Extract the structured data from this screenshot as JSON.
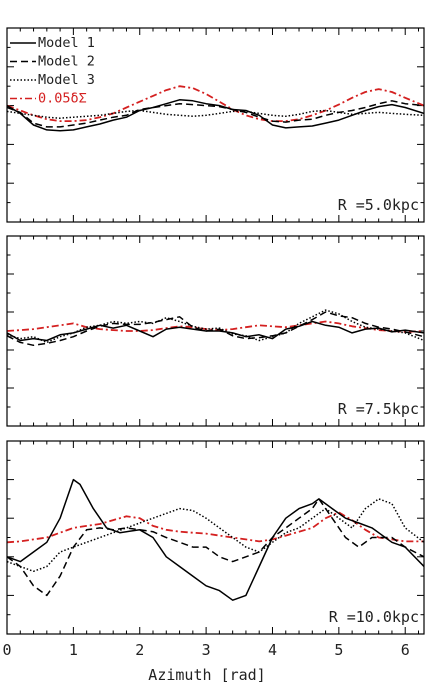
{
  "chart_data": [
    {
      "type": "line",
      "panel_label": "R =5.0kpc",
      "xlim": [
        0,
        6.283
      ],
      "ylim": [
        -1,
        1
      ],
      "legend": {
        "placement": "top-left",
        "entries": [
          "Model 1",
          "Model 2",
          "Model 3",
          "0.05δΣ"
        ]
      },
      "series": [
        {
          "name": "Model 1",
          "color": "#000000",
          "style": "solid",
          "x": [
            0,
            0.2,
            0.4,
            0.6,
            0.8,
            1.0,
            1.2,
            1.4,
            1.6,
            1.8,
            2.0,
            2.2,
            2.4,
            2.6,
            2.8,
            3.0,
            3.2,
            3.4,
            3.6,
            3.8,
            4.0,
            4.2,
            4.4,
            4.6,
            4.8,
            5.0,
            5.2,
            5.4,
            5.6,
            5.8,
            6.0,
            6.283
          ],
          "y": [
            0.2,
            0.12,
            0.0,
            -0.05,
            -0.06,
            -0.05,
            -0.02,
            0.01,
            0.05,
            0.08,
            0.15,
            0.18,
            0.22,
            0.26,
            0.25,
            0.22,
            0.2,
            0.16,
            0.15,
            0.1,
            0.0,
            -0.03,
            -0.02,
            -0.01,
            0.02,
            0.05,
            0.1,
            0.15,
            0.19,
            0.21,
            0.18,
            0.12
          ]
        },
        {
          "name": "Model 2",
          "color": "#000000",
          "style": "dashed",
          "x": [
            0,
            0.2,
            0.4,
            0.6,
            0.8,
            1.0,
            1.2,
            1.4,
            1.6,
            1.8,
            2.0,
            2.2,
            2.4,
            2.6,
            2.8,
            3.0,
            3.2,
            3.4,
            3.6,
            3.8,
            4.0,
            4.2,
            4.4,
            4.6,
            4.8,
            5.0,
            5.2,
            5.4,
            5.6,
            5.8,
            6.0,
            6.283
          ],
          "y": [
            0.18,
            0.13,
            0.02,
            -0.02,
            -0.02,
            0.0,
            0.02,
            0.05,
            0.08,
            0.1,
            0.16,
            0.18,
            0.2,
            0.22,
            0.21,
            0.2,
            0.19,
            0.16,
            0.13,
            0.08,
            0.04,
            0.03,
            0.05,
            0.06,
            0.1,
            0.13,
            0.15,
            0.18,
            0.22,
            0.25,
            0.22,
            0.2
          ]
        },
        {
          "name": "Model 3",
          "color": "#000000",
          "style": "dotted",
          "x": [
            0,
            0.2,
            0.4,
            0.6,
            0.8,
            1.0,
            1.2,
            1.4,
            1.6,
            1.8,
            2.0,
            2.2,
            2.4,
            2.6,
            2.8,
            3.0,
            3.2,
            3.4,
            3.6,
            3.8,
            4.0,
            4.2,
            4.4,
            4.6,
            4.8,
            5.0,
            5.2,
            5.4,
            5.6,
            5.8,
            6.0,
            6.283
          ],
          "y": [
            0.14,
            0.12,
            0.1,
            0.08,
            0.07,
            0.08,
            0.09,
            0.1,
            0.12,
            0.14,
            0.15,
            0.13,
            0.11,
            0.1,
            0.09,
            0.1,
            0.12,
            0.14,
            0.14,
            0.12,
            0.1,
            0.09,
            0.11,
            0.14,
            0.15,
            0.13,
            0.11,
            0.12,
            0.13,
            0.12,
            0.11,
            0.1
          ]
        },
        {
          "name": "0.05δΣ",
          "color": "#d42020",
          "style": "dashdot",
          "x": [
            0,
            0.2,
            0.4,
            0.6,
            0.8,
            1.0,
            1.2,
            1.4,
            1.6,
            1.8,
            2.0,
            2.2,
            2.4,
            2.6,
            2.8,
            3.0,
            3.2,
            3.4,
            3.6,
            3.8,
            4.0,
            4.2,
            4.4,
            4.6,
            4.8,
            5.0,
            5.2,
            5.4,
            5.6,
            5.8,
            6.0,
            6.283
          ],
          "y": [
            0.2,
            0.15,
            0.1,
            0.06,
            0.04,
            0.04,
            0.05,
            0.08,
            0.12,
            0.18,
            0.24,
            0.3,
            0.36,
            0.4,
            0.38,
            0.32,
            0.24,
            0.16,
            0.1,
            0.06,
            0.04,
            0.04,
            0.06,
            0.1,
            0.15,
            0.21,
            0.28,
            0.34,
            0.37,
            0.34,
            0.28,
            0.2
          ]
        }
      ]
    },
    {
      "type": "line",
      "panel_label": "R =7.5kpc",
      "xlim": [
        0,
        6.283
      ],
      "ylim": [
        -1,
        1
      ],
      "series": [
        {
          "name": "Model 1",
          "color": "#000000",
          "style": "solid",
          "x": [
            0,
            0.2,
            0.4,
            0.6,
            0.8,
            1.0,
            1.2,
            1.4,
            1.6,
            1.8,
            2.0,
            2.2,
            2.4,
            2.6,
            2.8,
            3.0,
            3.2,
            3.4,
            3.6,
            3.8,
            4.0,
            4.2,
            4.4,
            4.6,
            4.8,
            5.0,
            5.2,
            5.4,
            5.6,
            5.8,
            6.0,
            6.283
          ],
          "y": [
            -0.02,
            -0.1,
            -0.08,
            -0.1,
            -0.04,
            -0.02,
            0.02,
            0.06,
            0.03,
            0.06,
            0.0,
            -0.06,
            0.02,
            0.04,
            0.02,
            0.0,
            0.0,
            -0.02,
            -0.06,
            -0.04,
            -0.08,
            0.02,
            0.05,
            0.1,
            0.06,
            0.04,
            -0.02,
            0.02,
            0.03,
            -0.01,
            0.01,
            -0.02
          ]
        },
        {
          "name": "Model 2",
          "color": "#000000",
          "style": "dashed",
          "x": [
            0,
            0.2,
            0.4,
            0.6,
            0.8,
            1.0,
            1.2,
            1.4,
            1.6,
            1.8,
            2.0,
            2.2,
            2.4,
            2.6,
            2.8,
            3.0,
            3.2,
            3.4,
            3.6,
            3.8,
            4.0,
            4.2,
            4.4,
            4.6,
            4.8,
            5.0,
            5.2,
            5.4,
            5.6,
            5.8,
            6.0,
            6.283
          ],
          "y": [
            -0.05,
            -0.12,
            -0.15,
            -0.13,
            -0.1,
            -0.06,
            0.0,
            0.05,
            0.08,
            0.07,
            0.07,
            0.09,
            0.12,
            0.15,
            0.04,
            0.0,
            0.02,
            -0.05,
            -0.08,
            -0.07,
            -0.05,
            -0.02,
            0.05,
            0.12,
            0.2,
            0.16,
            0.14,
            0.08,
            0.04,
            0.02,
            -0.01,
            -0.06
          ]
        },
        {
          "name": "Model 3",
          "color": "#000000",
          "style": "dotted",
          "x": [
            0,
            0.2,
            0.4,
            0.6,
            0.8,
            1.0,
            1.2,
            1.4,
            1.6,
            1.8,
            2.0,
            2.2,
            2.4,
            2.6,
            2.8,
            3.0,
            3.2,
            3.4,
            3.6,
            3.8,
            4.0,
            4.2,
            4.4,
            4.6,
            4.8,
            5.0,
            5.2,
            5.4,
            5.6,
            5.8,
            6.0,
            6.283
          ],
          "y": [
            -0.04,
            -0.08,
            -0.06,
            -0.12,
            -0.06,
            -0.02,
            0.04,
            0.06,
            0.1,
            0.08,
            0.1,
            0.08,
            0.14,
            0.1,
            0.05,
            0.02,
            0.03,
            -0.03,
            -0.05,
            -0.1,
            -0.06,
            -0.02,
            0.08,
            0.15,
            0.22,
            0.18,
            0.1,
            0.04,
            0.02,
            0.0,
            -0.02,
            -0.1
          ]
        },
        {
          "name": "0.05δΣ",
          "color": "#d42020",
          "style": "dashdot",
          "x": [
            0,
            0.2,
            0.4,
            0.6,
            0.8,
            1.0,
            1.2,
            1.4,
            1.6,
            1.8,
            2.0,
            2.2,
            2.4,
            2.6,
            2.8,
            3.0,
            3.2,
            3.4,
            3.6,
            3.8,
            4.0,
            4.2,
            4.4,
            4.6,
            4.8,
            5.0,
            5.2,
            5.4,
            5.6,
            5.8,
            6.0,
            6.283
          ],
          "y": [
            0.0,
            0.01,
            0.02,
            0.04,
            0.06,
            0.08,
            0.04,
            0.02,
            0.01,
            0.0,
            0.0,
            0.01,
            0.03,
            0.05,
            0.04,
            0.02,
            0.01,
            0.02,
            0.04,
            0.06,
            0.05,
            0.04,
            0.06,
            0.08,
            0.1,
            0.08,
            0.05,
            0.03,
            0.01,
            0.0,
            -0.01,
            0.0
          ]
        }
      ]
    },
    {
      "type": "line",
      "panel_label": "R =10.0kpc",
      "xlim": [
        0,
        6.283
      ],
      "ylim": [
        -1,
        1
      ],
      "xlabel": "Azimuth [rad]",
      "xticks": [
        0,
        1,
        2,
        3,
        4,
        5,
        6
      ],
      "series": [
        {
          "name": "Model 1",
          "color": "#000000",
          "style": "solid",
          "x": [
            0,
            0.2,
            0.4,
            0.6,
            0.8,
            1.0,
            1.1,
            1.3,
            1.5,
            1.7,
            2.0,
            2.2,
            2.4,
            2.6,
            2.8,
            3.0,
            3.2,
            3.4,
            3.6,
            3.8,
            4.0,
            4.2,
            4.4,
            4.6,
            4.7,
            4.9,
            5.1,
            5.3,
            5.5,
            5.8,
            6.0,
            6.283
          ],
          "y": [
            -0.2,
            -0.25,
            -0.15,
            -0.05,
            0.2,
            0.6,
            0.55,
            0.3,
            0.1,
            0.05,
            0.08,
            0.0,
            -0.2,
            -0.3,
            -0.4,
            -0.5,
            -0.55,
            -0.65,
            -0.6,
            -0.3,
            0.0,
            0.2,
            0.3,
            0.35,
            0.4,
            0.3,
            0.2,
            0.15,
            0.1,
            -0.05,
            -0.1,
            -0.3
          ]
        },
        {
          "name": "Model 2",
          "color": "#000000",
          "style": "dashed",
          "x": [
            0,
            0.2,
            0.4,
            0.6,
            0.8,
            1.0,
            1.2,
            1.4,
            1.6,
            1.8,
            2.0,
            2.2,
            2.4,
            2.6,
            2.8,
            3.0,
            3.2,
            3.4,
            3.6,
            3.8,
            4.0,
            4.2,
            4.4,
            4.6,
            4.7,
            4.9,
            5.1,
            5.3,
            5.5,
            5.8,
            6.0,
            6.283
          ],
          "y": [
            -0.2,
            -0.3,
            -0.5,
            -0.6,
            -0.4,
            -0.1,
            0.08,
            0.1,
            0.08,
            0.1,
            0.08,
            0.06,
            0.0,
            -0.05,
            -0.1,
            -0.1,
            -0.2,
            -0.25,
            -0.2,
            -0.15,
            0.0,
            0.1,
            0.2,
            0.3,
            0.4,
            0.2,
            0.0,
            -0.1,
            0.0,
            0.0,
            -0.1,
            -0.2
          ]
        },
        {
          "name": "Model 3",
          "color": "#000000",
          "style": "dotted",
          "x": [
            0,
            0.2,
            0.4,
            0.6,
            0.8,
            1.0,
            1.2,
            1.4,
            1.6,
            1.8,
            2.0,
            2.2,
            2.4,
            2.6,
            2.8,
            3.0,
            3.2,
            3.4,
            3.6,
            3.8,
            4.0,
            4.2,
            4.4,
            4.6,
            4.8,
            5.0,
            5.2,
            5.4,
            5.6,
            5.8,
            6.0,
            6.283
          ],
          "y": [
            -0.25,
            -0.3,
            -0.35,
            -0.3,
            -0.15,
            -0.1,
            -0.05,
            0.0,
            0.05,
            0.1,
            0.15,
            0.2,
            0.25,
            0.3,
            0.28,
            0.2,
            0.1,
            0.0,
            -0.1,
            -0.15,
            -0.05,
            0.05,
            0.1,
            0.2,
            0.3,
            0.2,
            0.1,
            0.3,
            0.4,
            0.35,
            0.1,
            -0.05
          ]
        },
        {
          "name": "0.05δΣ",
          "color": "#d42020",
          "style": "dashdot",
          "x": [
            0,
            0.2,
            0.4,
            0.6,
            0.8,
            1.0,
            1.2,
            1.4,
            1.6,
            1.8,
            2.0,
            2.2,
            2.4,
            2.6,
            2.8,
            3.0,
            3.2,
            3.4,
            3.6,
            3.8,
            4.0,
            4.2,
            4.4,
            4.6,
            4.8,
            5.0,
            5.2,
            5.4,
            5.6,
            5.8,
            6.0,
            6.283
          ],
          "y": [
            -0.05,
            -0.04,
            -0.02,
            0.0,
            0.05,
            0.1,
            0.12,
            0.14,
            0.18,
            0.22,
            0.2,
            0.12,
            0.08,
            0.06,
            0.05,
            0.04,
            0.02,
            0.0,
            -0.02,
            -0.04,
            -0.02,
            0.02,
            0.06,
            0.1,
            0.2,
            0.26,
            0.18,
            0.08,
            0.0,
            -0.02,
            -0.04,
            -0.04
          ]
        }
      ]
    }
  ]
}
